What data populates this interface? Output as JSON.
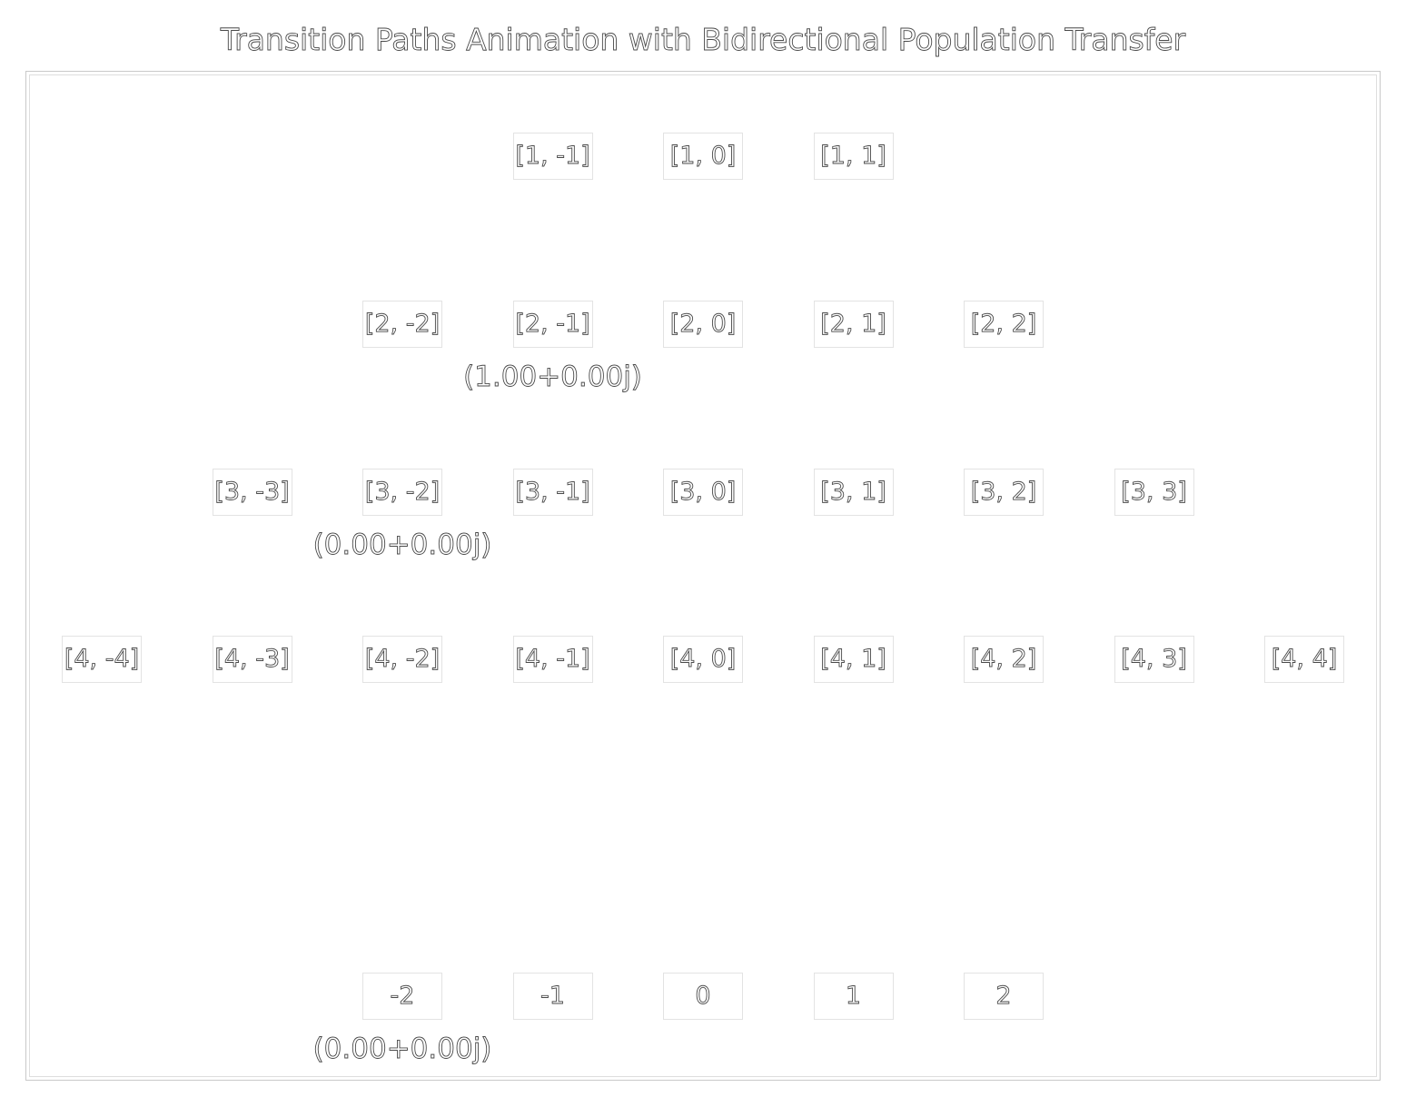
{
  "title": "Transition Paths Animation with Bidirectional Population Transfer",
  "rows": [
    {
      "nodes": [
        {
          "label": "[1, -1]",
          "col": 3
        },
        {
          "label": "[1, 0]",
          "col": 4
        },
        {
          "label": "[1, 1]",
          "col": 5
        }
      ],
      "amplitudes": []
    },
    {
      "nodes": [
        {
          "label": "[2, -2]",
          "col": 2
        },
        {
          "label": "[2, -1]",
          "col": 3
        },
        {
          "label": "[2, 0]",
          "col": 4
        },
        {
          "label": "[2, 1]",
          "col": 5
        },
        {
          "label": "[2, 2]",
          "col": 6
        }
      ],
      "amplitudes": [
        {
          "text": "(1.00+0.00j)",
          "col": 3
        }
      ]
    },
    {
      "nodes": [
        {
          "label": "[3, -3]",
          "col": 1
        },
        {
          "label": "[3, -2]",
          "col": 2
        },
        {
          "label": "[3, -1]",
          "col": 3
        },
        {
          "label": "[3, 0]",
          "col": 4
        },
        {
          "label": "[3, 1]",
          "col": 5
        },
        {
          "label": "[3, 2]",
          "col": 6
        },
        {
          "label": "[3, 3]",
          "col": 7
        }
      ],
      "amplitudes": [
        {
          "text": "(0.00+0.00j)",
          "col": 2
        }
      ]
    },
    {
      "nodes": [
        {
          "label": "[4, -4]",
          "col": 0
        },
        {
          "label": "[4, -3]",
          "col": 1
        },
        {
          "label": "[4, -2]",
          "col": 2
        },
        {
          "label": "[4, -1]",
          "col": 3
        },
        {
          "label": "[4, 0]",
          "col": 4
        },
        {
          "label": "[4, 1]",
          "col": 5
        },
        {
          "label": "[4, 2]",
          "col": 6
        },
        {
          "label": "[4, 3]",
          "col": 7
        },
        {
          "label": "[4, 4]",
          "col": 8
        }
      ],
      "amplitudes": []
    },
    {
      "nodes": [
        {
          "label": "-2",
          "col": 2
        },
        {
          "label": "-1",
          "col": 3
        },
        {
          "label": "0",
          "col": 4
        },
        {
          "label": "1",
          "col": 5
        },
        {
          "label": "2",
          "col": 6
        }
      ],
      "amplitudes": [
        {
          "text": "(0.00+0.00j)",
          "col": 2
        }
      ]
    }
  ]
}
